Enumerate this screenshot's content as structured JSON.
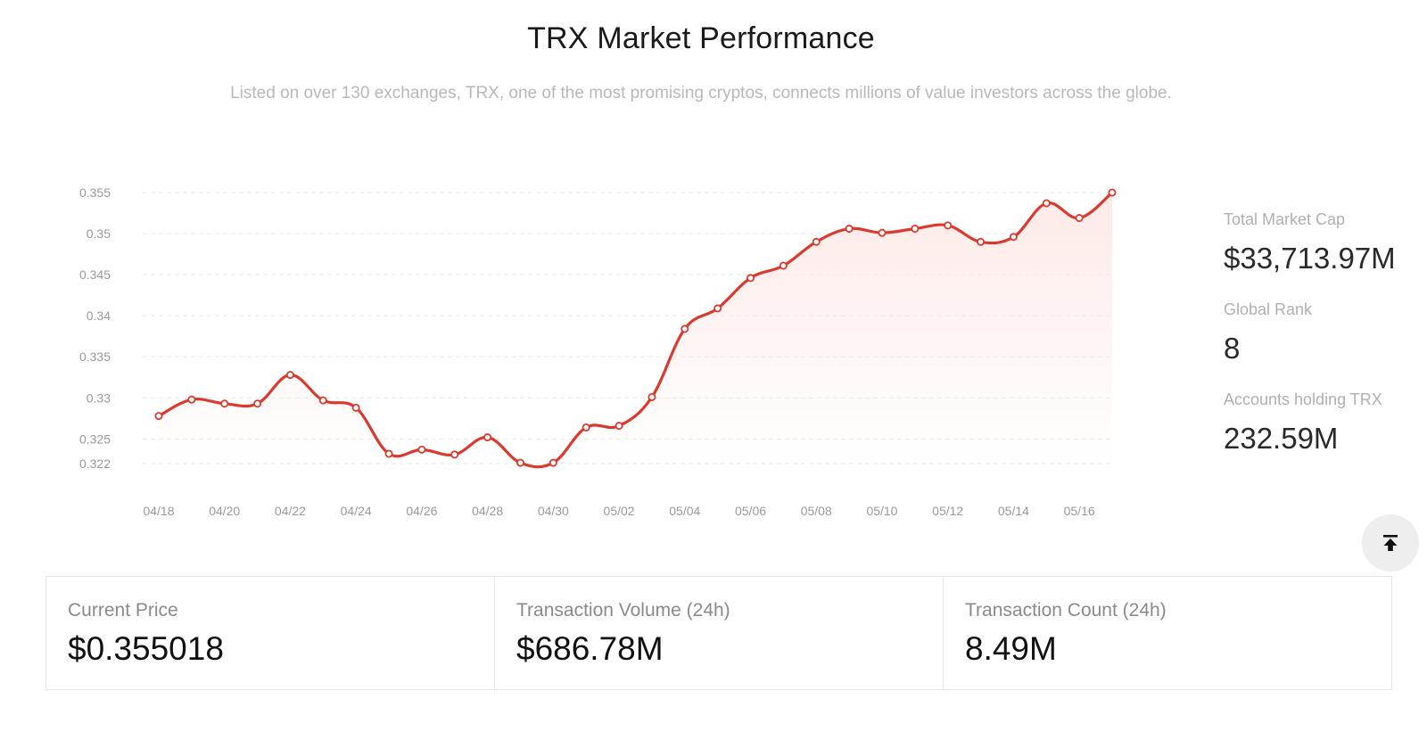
{
  "header": {
    "title": "TRX Market Performance",
    "subtitle": "Listed on over 130 exchanges, TRX, one of the most promising cryptos, connects millions of value investors across the globe."
  },
  "side_stats": [
    {
      "label": "Total Market Cap",
      "value": "$33,713.97M"
    },
    {
      "label": "Global Rank",
      "value": "8"
    },
    {
      "label": "Accounts holding TRX",
      "value": "232.59M"
    }
  ],
  "cards": [
    {
      "label": "Current Price",
      "value": "$0.355018"
    },
    {
      "label": "Transaction Volume (24h)",
      "value": "$686.78M"
    },
    {
      "label": "Transaction Count (24h)",
      "value": "8.49M"
    }
  ],
  "back_to_top": {
    "icon": "arrow-up-to-line-icon"
  },
  "colors": {
    "line": "#d93a2e",
    "marker_fill": "#ffffff",
    "area": "#fde9e6"
  },
  "chart_data": {
    "type": "line",
    "title": "",
    "xlabel": "",
    "ylabel": "",
    "ylim": [
      0.322,
      0.355
    ],
    "y_ticks": [
      "0.355",
      "0.35",
      "0.345",
      "0.34",
      "0.335",
      "0.33",
      "0.325",
      "0.322"
    ],
    "x_tick_labels": [
      "04/18",
      "04/20",
      "04/22",
      "04/24",
      "04/26",
      "04/28",
      "04/30",
      "05/02",
      "05/04",
      "05/06",
      "05/08",
      "05/10",
      "05/12",
      "05/14",
      "05/16"
    ],
    "x": [
      "04/18",
      "04/19",
      "04/20",
      "04/21",
      "04/22",
      "04/23",
      "04/24",
      "04/25",
      "04/26",
      "04/27",
      "04/28",
      "04/29",
      "04/30",
      "05/01",
      "05/02",
      "05/03",
      "05/04",
      "05/05",
      "05/06",
      "05/07",
      "05/08",
      "05/09",
      "05/10",
      "05/11",
      "05/12",
      "05/13",
      "05/14",
      "05/15",
      "05/16",
      "05/17"
    ],
    "series": [
      {
        "values": [
          0.3278,
          0.3298,
          0.3293,
          0.3293,
          0.3328,
          0.3297,
          0.3288,
          0.3232,
          0.3237,
          0.3231,
          0.3252,
          0.3221,
          0.3221,
          0.3264,
          0.3266,
          0.3301,
          0.3384,
          0.3409,
          0.3446,
          0.3461,
          0.349,
          0.3506,
          0.3501,
          0.3506,
          0.351,
          0.349,
          0.3496,
          0.3537,
          0.3519,
          0.355
        ]
      }
    ],
    "grid": true,
    "legend": "none",
    "area_fill": true
  }
}
